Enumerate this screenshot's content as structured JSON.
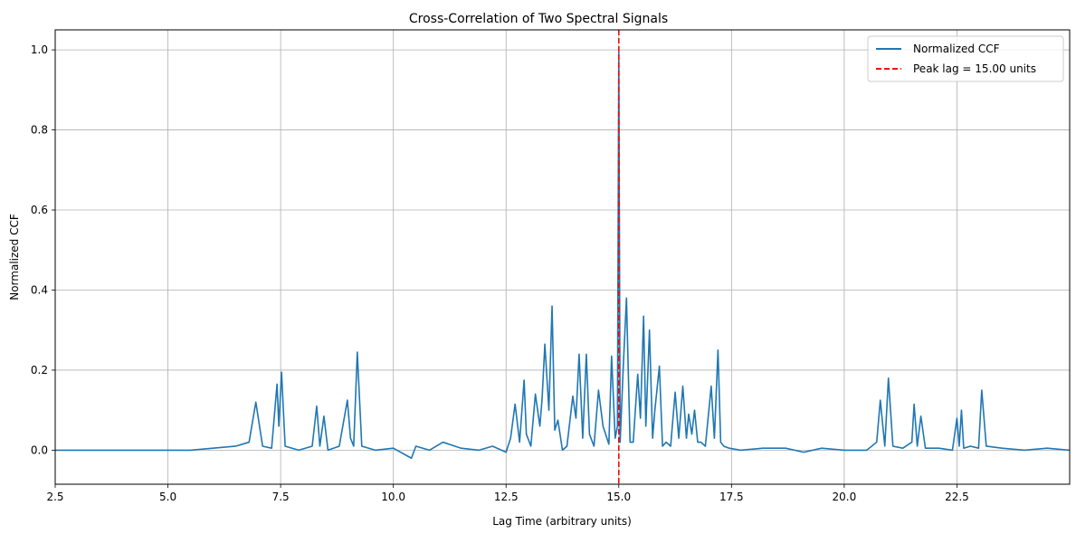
{
  "chart_data": {
    "type": "line",
    "title": "Cross-Correlation of Two Spectral Signals",
    "xlabel": "Lag Time (arbitrary units)",
    "ylabel": "Normalized CCF",
    "xlim": [
      2.5,
      25
    ],
    "ylim": [
      -0.085,
      1.05
    ],
    "xticks": [
      2.5,
      5.0,
      7.5,
      10.0,
      12.5,
      15.0,
      17.5,
      20.0,
      22.5
    ],
    "xtick_labels": [
      "2.5",
      "5.0",
      "7.5",
      "10.0",
      "12.5",
      "15.0",
      "17.5",
      "20.0",
      "22.5"
    ],
    "yticks": [
      0.0,
      0.2,
      0.4,
      0.6,
      0.8,
      1.0
    ],
    "ytick_labels": [
      "0.0",
      "0.2",
      "0.4",
      "0.6",
      "0.8",
      "1.0"
    ],
    "grid": true,
    "legend_position": "top-right",
    "series": [
      {
        "name": "Normalized CCF",
        "color": "#1f77b4",
        "style": "solid",
        "x": [
          2.5,
          5.0,
          5.5,
          6.0,
          6.5,
          6.8,
          6.95,
          7.1,
          7.3,
          7.42,
          7.46,
          7.52,
          7.6,
          7.9,
          8.2,
          8.3,
          8.37,
          8.46,
          8.55,
          8.8,
          8.98,
          9.05,
          9.12,
          9.2,
          9.3,
          9.6,
          10.0,
          10.4,
          10.5,
          10.8,
          11.1,
          11.5,
          11.9,
          12.2,
          12.5,
          12.6,
          12.7,
          12.8,
          12.9,
          12.95,
          13.05,
          13.15,
          13.25,
          13.3,
          13.36,
          13.45,
          13.52,
          13.58,
          13.65,
          13.75,
          13.85,
          13.98,
          14.05,
          14.12,
          14.2,
          14.28,
          14.35,
          14.45,
          14.55,
          14.65,
          14.78,
          14.84,
          14.92,
          14.97,
          15.0,
          15.03,
          15.1,
          15.17,
          15.25,
          15.32,
          15.42,
          15.48,
          15.55,
          15.6,
          15.68,
          15.75,
          15.8,
          15.9,
          15.97,
          16.05,
          16.15,
          16.25,
          16.33,
          16.42,
          16.5,
          16.55,
          16.62,
          16.68,
          16.75,
          16.82,
          16.92,
          17.05,
          17.12,
          17.2,
          17.26,
          17.33,
          17.45,
          17.7,
          18.2,
          18.7,
          19.1,
          19.5,
          20.0,
          20.5,
          20.72,
          20.8,
          20.9,
          20.98,
          21.08,
          21.3,
          21.5,
          21.55,
          21.62,
          21.7,
          21.8,
          22.1,
          22.4,
          22.5,
          22.55,
          22.6,
          22.65,
          22.8,
          22.98,
          23.05,
          23.15,
          23.5,
          24.0,
          24.5,
          25.0
        ],
        "y": [
          0.0,
          0.0,
          0.0,
          0.005,
          0.01,
          0.02,
          0.12,
          0.01,
          0.005,
          0.165,
          0.06,
          0.195,
          0.01,
          0.0,
          0.01,
          0.11,
          0.01,
          0.085,
          0.0,
          0.01,
          0.125,
          0.03,
          0.01,
          0.245,
          0.01,
          0.0,
          0.005,
          -0.02,
          0.01,
          0.0,
          0.02,
          0.005,
          0.0,
          0.01,
          -0.005,
          0.03,
          0.115,
          0.02,
          0.175,
          0.04,
          0.01,
          0.14,
          0.06,
          0.13,
          0.265,
          0.1,
          0.36,
          0.05,
          0.075,
          0.0,
          0.01,
          0.135,
          0.08,
          0.24,
          0.03,
          0.24,
          0.04,
          0.01,
          0.15,
          0.06,
          0.015,
          0.235,
          0.03,
          0.06,
          1.0,
          0.02,
          0.21,
          0.38,
          0.02,
          0.02,
          0.19,
          0.08,
          0.335,
          0.06,
          0.3,
          0.03,
          0.1,
          0.21,
          0.01,
          0.02,
          0.01,
          0.145,
          0.03,
          0.16,
          0.03,
          0.09,
          0.04,
          0.1,
          0.02,
          0.02,
          0.01,
          0.16,
          0.03,
          0.25,
          0.02,
          0.01,
          0.005,
          0.0,
          0.005,
          0.005,
          -0.005,
          0.005,
          0.0,
          0.0,
          0.02,
          0.125,
          0.01,
          0.18,
          0.01,
          0.005,
          0.02,
          0.115,
          0.01,
          0.085,
          0.005,
          0.005,
          0.0,
          0.08,
          0.01,
          0.1,
          0.005,
          0.01,
          0.005,
          0.15,
          0.01,
          0.005,
          0.0,
          0.005,
          0.0
        ]
      },
      {
        "name": "Peak lag = 15.00 units",
        "color": "#ff0000",
        "style": "dashed",
        "vline_x": 15.0
      }
    ]
  }
}
